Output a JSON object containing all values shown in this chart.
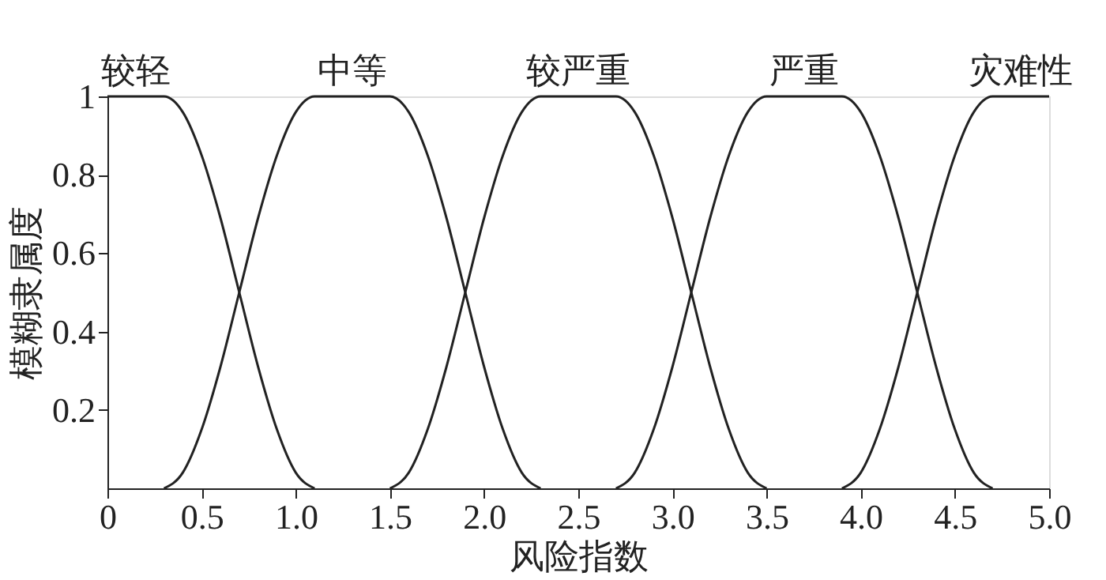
{
  "chart_data": {
    "type": "line",
    "xlabel": "风险指数",
    "ylabel": "模糊隶属度",
    "xlim": [
      0,
      5
    ],
    "ylim": [
      0,
      1
    ],
    "xticks": [
      0,
      0.5,
      {
        "value": 1,
        "label": "1.0"
      },
      1.5,
      {
        "value": 2,
        "label": "2.0"
      },
      2.5,
      {
        "value": 3,
        "label": "3.0"
      },
      3.5,
      {
        "value": 4,
        "label": "4.0"
      },
      4.5,
      {
        "value": 5,
        "label": "5.0"
      }
    ],
    "yticks": [
      0.2,
      0.4,
      0.6,
      0.8,
      1
    ],
    "grid": false,
    "legend": false,
    "marker": "none",
    "line_style": "solid",
    "series": [
      {
        "name": "较轻",
        "color": "#222222",
        "x": [
          0,
          0.3,
          0.4,
          0.5,
          0.6,
          0.7,
          0.8,
          0.9,
          1.0,
          1.1
        ],
        "values": [
          1,
          1,
          0.96,
          0.85,
          0.69,
          0.5,
          0.31,
          0.15,
          0.04,
          0
        ]
      },
      {
        "name": "中等",
        "color": "#222222",
        "x": [
          0.3,
          0.4,
          0.5,
          0.6,
          0.7,
          0.8,
          0.9,
          1.0,
          1.1,
          1.5,
          1.6,
          1.7,
          1.8,
          1.9,
          2.0,
          2.1,
          2.2,
          2.3
        ],
        "values": [
          0,
          0.04,
          0.15,
          0.31,
          0.5,
          0.69,
          0.85,
          0.96,
          1,
          1,
          0.96,
          0.85,
          0.69,
          0.5,
          0.31,
          0.15,
          0.04,
          0
        ]
      },
      {
        "name": "较严重",
        "color": "#222222",
        "x": [
          1.5,
          1.6,
          1.7,
          1.8,
          1.9,
          2.0,
          2.1,
          2.2,
          2.3,
          2.7,
          2.8,
          2.9,
          3.0,
          3.1,
          3.2,
          3.3,
          3.4,
          3.5
        ],
        "values": [
          0,
          0.04,
          0.15,
          0.31,
          0.5,
          0.69,
          0.85,
          0.96,
          1,
          1,
          0.96,
          0.85,
          0.69,
          0.5,
          0.31,
          0.15,
          0.04,
          0
        ]
      },
      {
        "name": "严重",
        "color": "#222222",
        "x": [
          2.7,
          2.8,
          2.9,
          3.0,
          3.1,
          3.2,
          3.3,
          3.4,
          3.5,
          3.9,
          4.0,
          4.1,
          4.2,
          4.3,
          4.4,
          4.5,
          4.6,
          4.7
        ],
        "values": [
          0,
          0.04,
          0.15,
          0.31,
          0.5,
          0.69,
          0.85,
          0.96,
          1,
          1,
          0.96,
          0.85,
          0.69,
          0.5,
          0.31,
          0.15,
          0.04,
          0
        ]
      },
      {
        "name": "灾难性",
        "color": "#222222",
        "x": [
          3.9,
          4.0,
          4.1,
          4.2,
          4.3,
          4.4,
          4.5,
          4.6,
          4.7,
          5.0
        ],
        "values": [
          0,
          0.04,
          0.15,
          0.31,
          0.5,
          0.69,
          0.85,
          0.96,
          1,
          1
        ]
      }
    ]
  }
}
